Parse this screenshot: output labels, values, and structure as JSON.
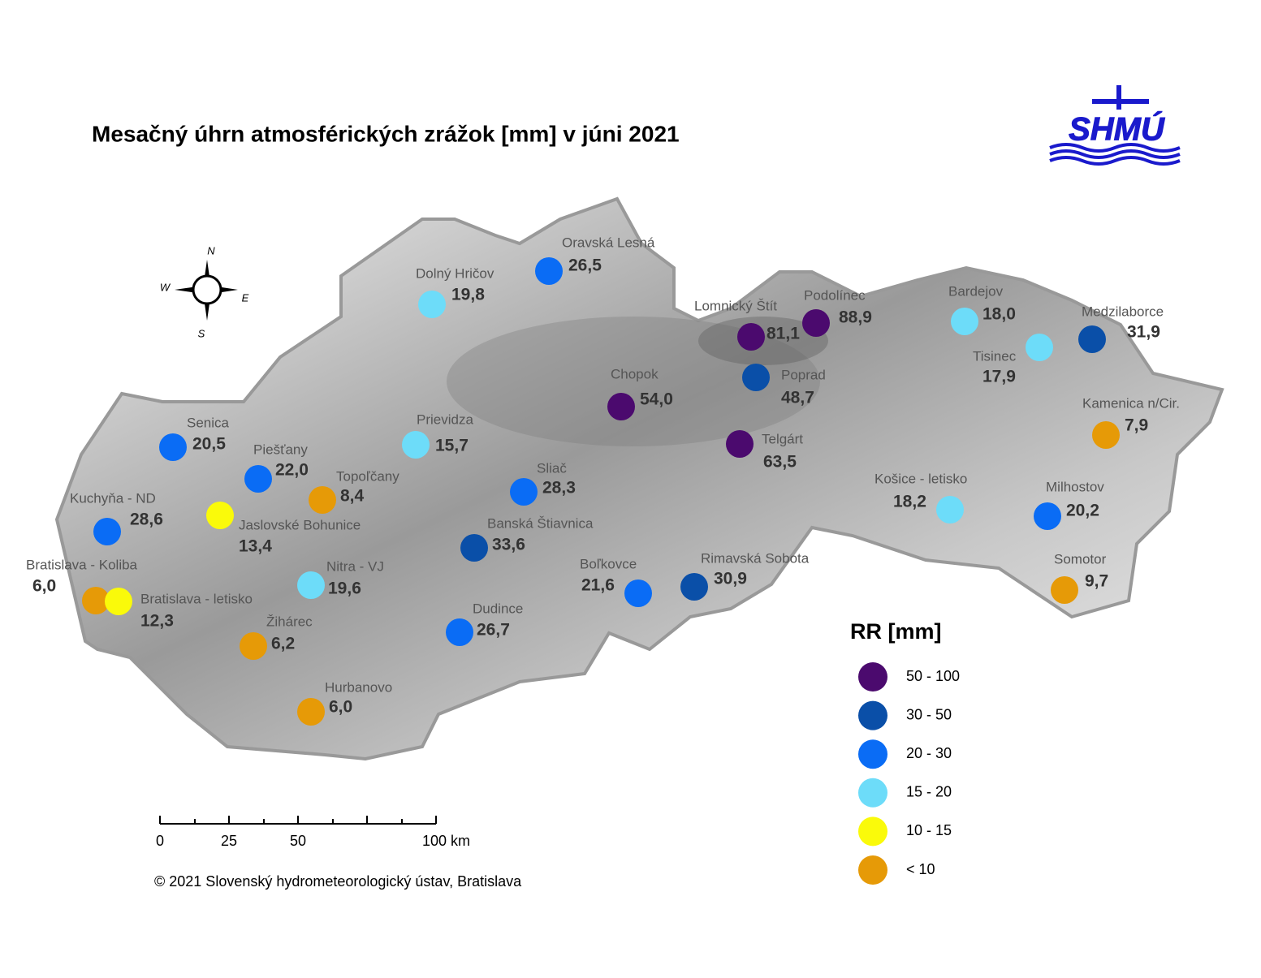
{
  "title": "Mesačný úhrn atmosférických zrážok [mm] v júni 2021",
  "logo": "SHMÚ",
  "compass": {
    "n": "N",
    "w": "W",
    "e": "E",
    "s": "S"
  },
  "stations": [
    {
      "name": "Oravská Lesná",
      "value": "26,5",
      "color": "#0a6cf5"
    },
    {
      "name": "Dolný Hričov",
      "value": "19,8",
      "color": "#6ddcf9"
    },
    {
      "name": "Lomnický Štít",
      "value": "81,1",
      "color": "#4b0a6e"
    },
    {
      "name": "Podolínec",
      "value": "88,9",
      "color": "#4b0a6e"
    },
    {
      "name": "Bardejov",
      "value": "18,0",
      "color": "#6ddcf9"
    },
    {
      "name": "Medzilaborce",
      "value": "31,9",
      "color": "#0a4fa8"
    },
    {
      "name": "Tisinec",
      "value": "17,9",
      "color": "#6ddcf9"
    },
    {
      "name": "Poprad",
      "value": "48,7",
      "color": "#0a4fa8"
    },
    {
      "name": "Chopok",
      "value": "54,0",
      "color": "#4b0a6e"
    },
    {
      "name": "Kamenica n/Cir.",
      "value": "7,9",
      "color": "#e69a07"
    },
    {
      "name": "Telgárt",
      "value": "63,5",
      "color": "#4b0a6e"
    },
    {
      "name": "Senica",
      "value": "20,5",
      "color": "#0a6cf5"
    },
    {
      "name": "Prievidza",
      "value": "15,7",
      "color": "#6ddcf9"
    },
    {
      "name": "Piešťany",
      "value": "22,0",
      "color": "#0a6cf5"
    },
    {
      "name": "Topoľčany",
      "value": "8,4",
      "color": "#e69a07"
    },
    {
      "name": "Sliač",
      "value": "28,3",
      "color": "#0a6cf5"
    },
    {
      "name": "Košice - letisko",
      "value": "18,2",
      "color": "#6ddcf9"
    },
    {
      "name": "Milhostov",
      "value": "20,2",
      "color": "#0a6cf5"
    },
    {
      "name": "Kuchyňa - ND",
      "value": "28,6",
      "color": "#0a6cf5"
    },
    {
      "name": "Jaslovské Bohunice",
      "value": "13,4",
      "color": "#fafa0a"
    },
    {
      "name": "Banská Štiavnica",
      "value": "33,6",
      "color": "#0a4fa8"
    },
    {
      "name": "Somotor",
      "value": "9,7",
      "color": "#e69a07"
    },
    {
      "name": "Rimavská Sobota",
      "value": "30,9",
      "color": "#0a4fa8"
    },
    {
      "name": "Boľkovce",
      "value": "21,6",
      "color": "#0a6cf5"
    },
    {
      "name": "Nitra - VJ",
      "value": "19,6",
      "color": "#6ddcf9"
    },
    {
      "name": "Bratislava - Koliba",
      "value": "6,0",
      "color": "#e69a07"
    },
    {
      "name": "Bratislava - letisko",
      "value": "12,3",
      "color": "#fafa0a"
    },
    {
      "name": "Dudince",
      "value": "26,7",
      "color": "#0a6cf5"
    },
    {
      "name": "Žihárec",
      "value": "6,2",
      "color": "#e69a07"
    },
    {
      "name": "Hurbanovo",
      "value": "6,0",
      "color": "#e69a07"
    }
  ],
  "legend": {
    "title": "RR [mm]",
    "items": [
      {
        "label": "50 - 100",
        "color": "#4b0a6e"
      },
      {
        "label": "30 - 50",
        "color": "#0a4fa8"
      },
      {
        "label": "20 - 30",
        "color": "#0a6cf5"
      },
      {
        "label": "15 - 20",
        "color": "#6ddcf9"
      },
      {
        "label": "10 - 15",
        "color": "#fafa0a"
      },
      {
        "label": "< 10",
        "color": "#e69a07"
      }
    ]
  },
  "scale_bar": [
    "0",
    "25",
    "50",
    "100 km"
  ],
  "copyright": "© 2021 Slovenský hydrometeorologický ústav, Bratislava"
}
